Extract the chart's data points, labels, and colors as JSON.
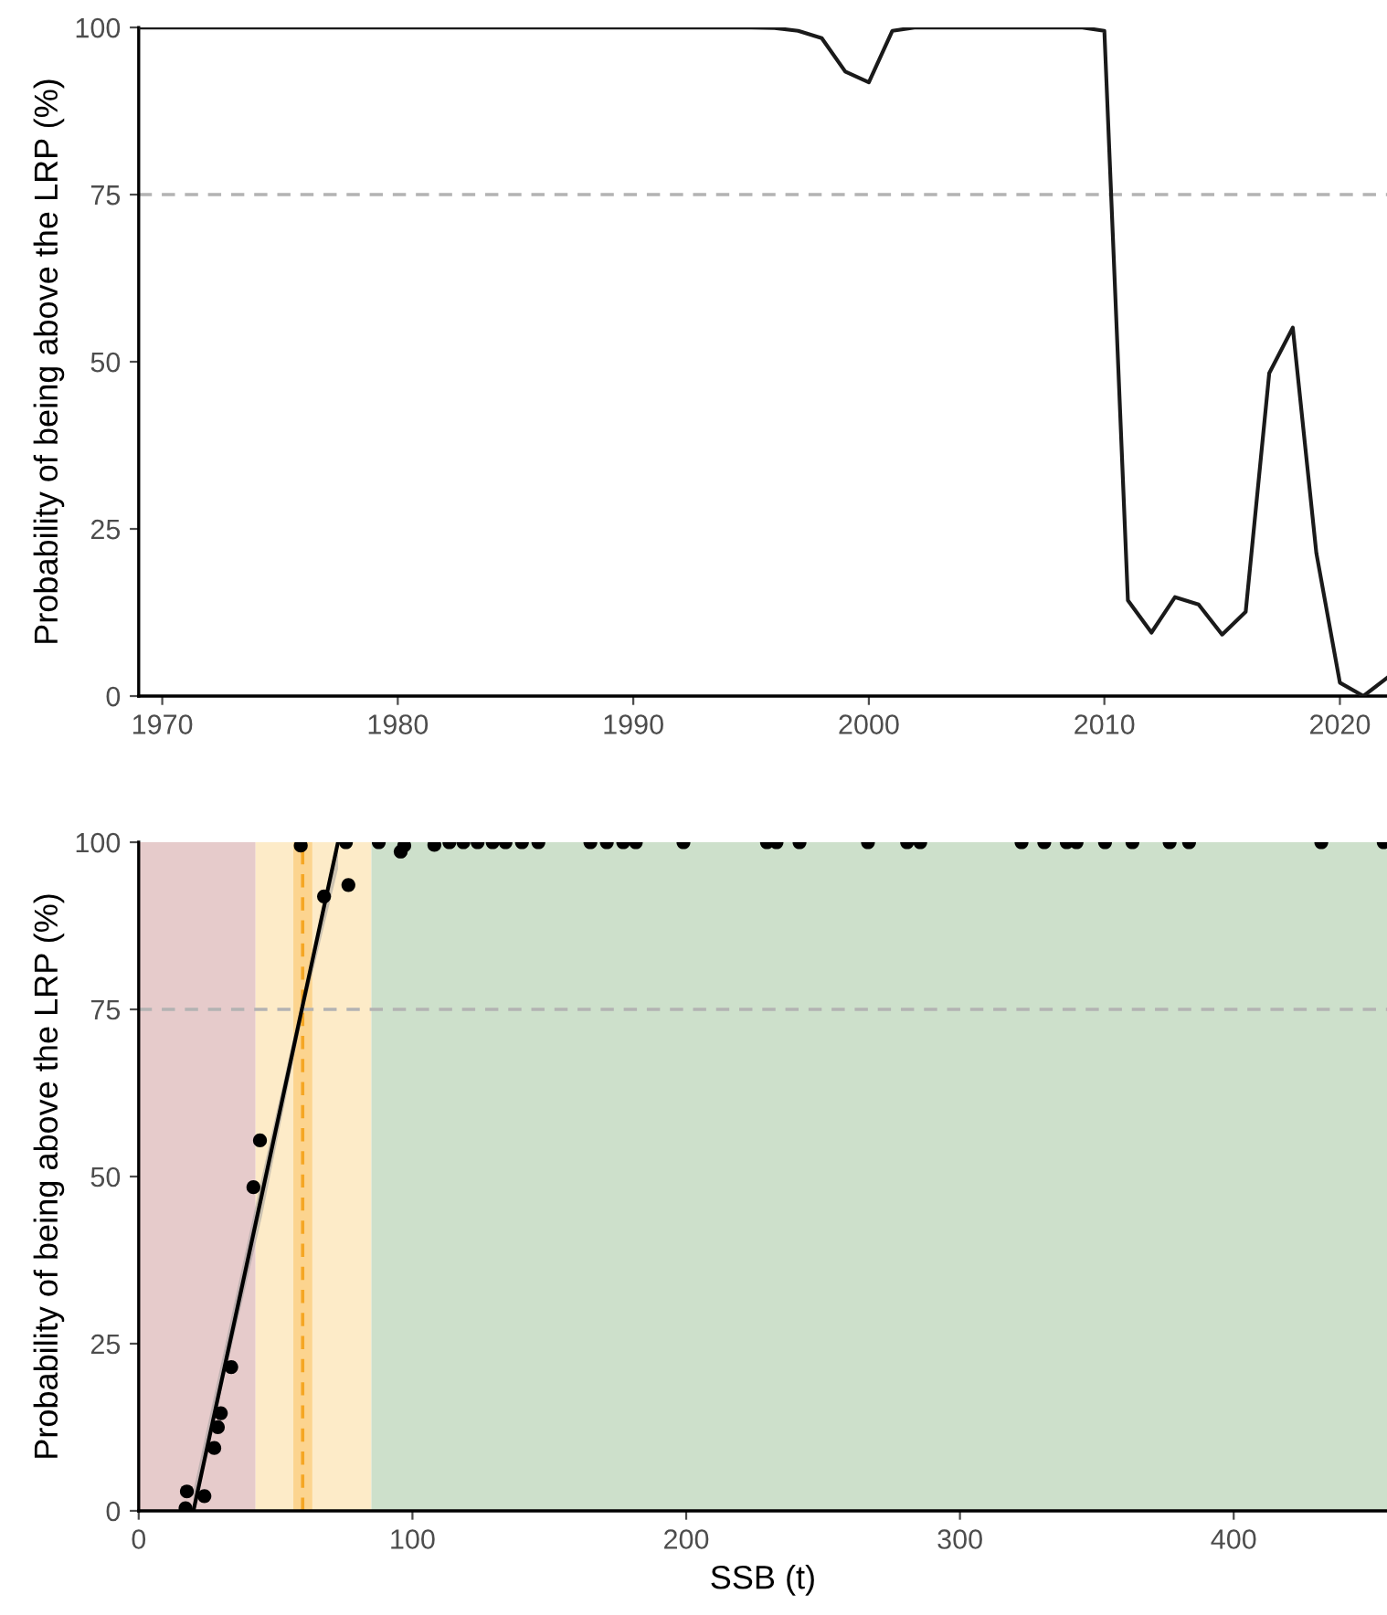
{
  "chart_data": [
    {
      "type": "line",
      "ylabel": "Probability of being above the LRP (%)",
      "xlim": [
        1969,
        2022
      ],
      "xticks": [
        1970,
        1980,
        1990,
        2000,
        2010,
        2020
      ],
      "ylim": [
        0,
        100
      ],
      "yticks": [
        0,
        25,
        50,
        75,
        100
      ],
      "grid": false,
      "series": [
        {
          "color": "#1a1a1a",
          "x": [
            1969,
            1970,
            1971,
            1972,
            1973,
            1974,
            1975,
            1976,
            1977,
            1978,
            1979,
            1980,
            1981,
            1982,
            1983,
            1984,
            1985,
            1986,
            1987,
            1988,
            1989,
            1990,
            1991,
            1992,
            1993,
            1994,
            1995,
            1996,
            1997,
            1998,
            1999,
            2000,
            2001,
            2002,
            2003,
            2004,
            2005,
            2006,
            2007,
            2008,
            2009,
            2010,
            2011,
            2012,
            2013,
            2014,
            2015,
            2016,
            2017,
            2018,
            2019,
            2020,
            2021,
            2022
          ],
          "values": [
            100,
            100,
            100,
            100,
            100,
            100,
            100,
            100,
            100,
            100,
            100,
            100,
            100,
            100,
            100,
            100,
            100,
            100,
            100,
            100,
            100,
            100,
            100,
            100,
            100,
            100,
            100,
            99.9,
            99.5,
            98.4,
            93.4,
            91.8,
            99.5,
            100,
            100,
            100,
            100,
            100,
            100,
            100,
            100,
            99.5,
            14.3,
            9.5,
            14.8,
            13.7,
            9.2,
            12.6,
            48.3,
            55.1,
            21.4,
            2.0,
            0,
            2.7
          ]
        }
      ],
      "ref_lines": [
        {
          "axis": "y",
          "value": 75,
          "color": "#b3b3b3",
          "line_style": "dashed"
        }
      ]
    },
    {
      "type": "scatter",
      "ylabel": "Probability of being above the LRP (%)",
      "xlabel": "SSB (t)",
      "xlim": [
        0,
        456
      ],
      "xticks": [
        0,
        100,
        200,
        300,
        400
      ],
      "ylim": [
        0,
        100
      ],
      "yticks": [
        0,
        25,
        50,
        75,
        100
      ],
      "grid": false,
      "series": [
        {
          "marker": "circle",
          "color": "#000000",
          "x": [
            17.1,
            17.6,
            24.0,
            27.6,
            28.9,
            30.0,
            33.8,
            41.9,
            44.3,
            59.2,
            67.7,
            76.6,
            75.7,
            87.7,
            95.7,
            97,
            108,
            113.5,
            118.6,
            123.8,
            129.3,
            134,
            140,
            146,
            165,
            171,
            177,
            181.6,
            199,
            229.5,
            233,
            241.4,
            266.4,
            280.7,
            285.5,
            322.5,
            330.8,
            339,
            342.6,
            353,
            363,
            376.6,
            383.7,
            432,
            454.8
          ],
          "values": [
            0.4,
            2.9,
            2.2,
            9.4,
            12.5,
            14.6,
            21.5,
            48.4,
            55.4,
            99.5,
            91.9,
            93.6,
            100,
            100,
            98.6,
            99.5,
            99.6,
            100,
            100,
            100,
            100,
            100,
            100,
            100,
            100,
            100,
            100,
            100,
            100,
            100,
            100,
            100,
            100,
            100,
            100,
            100,
            100,
            100,
            100,
            100,
            100,
            100,
            100,
            100,
            100
          ]
        },
        {
          "type": "line",
          "color": "#000000",
          "x": [
            20,
            45,
            60,
            72.8
          ],
          "values": [
            0,
            47.3,
            75.8,
            100
          ],
          "lower": [
            0,
            44,
            74.5,
            96
          ],
          "upper": [
            3,
            50,
            77,
            100
          ]
        }
      ],
      "bands": [
        {
          "axis": "x",
          "from": 0,
          "to": 42.7,
          "color": "#e6cbcb"
        },
        {
          "axis": "x",
          "from": 42.7,
          "to": 85,
          "color": "#fdebc8"
        },
        {
          "axis": "x",
          "from": 85,
          "to": 456,
          "color": "#cde0cb"
        },
        {
          "axis": "x",
          "from": 56.5,
          "to": 63.4,
          "color": "#fcd48f"
        }
      ],
      "ref_lines": [
        {
          "axis": "y",
          "value": 75,
          "color": "#b3b3b3",
          "line_style": "dashed"
        },
        {
          "axis": "x",
          "value": 59.9,
          "color": "#f5a623",
          "line_style": "dashed"
        }
      ]
    }
  ]
}
